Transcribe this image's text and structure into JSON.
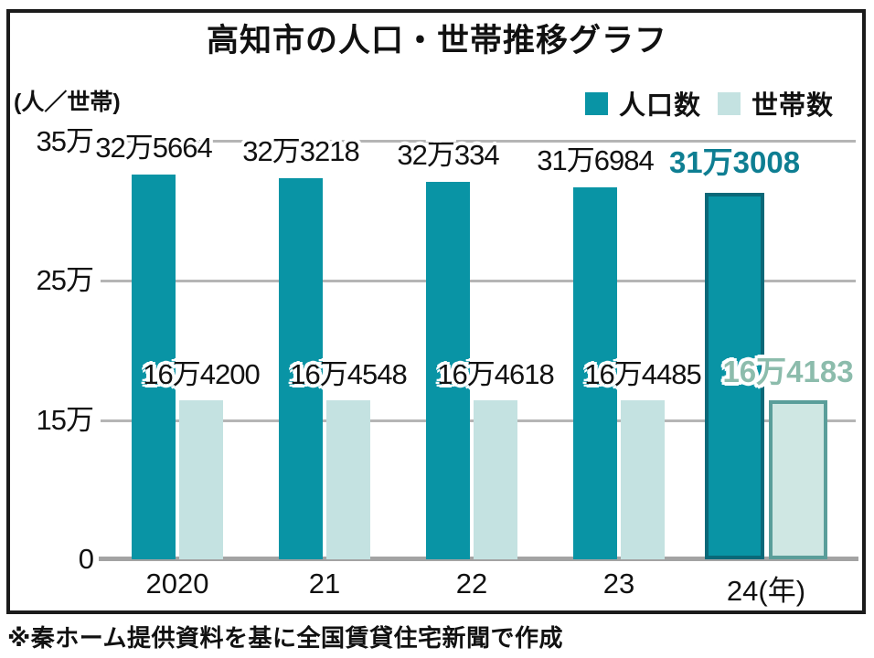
{
  "title": "高知市の人口・世帯推移グラフ",
  "unit_label": "(人／世帯)",
  "legend": {
    "population": "人口数",
    "households": "世帯数"
  },
  "footer": "※秦ホーム提供資料を基に全国賃貸住宅新聞で作成",
  "y_axis": {
    "ticks": [
      {
        "label": "35万",
        "value": 350000
      },
      {
        "label": "25万",
        "value": 250000
      },
      {
        "label": "15万",
        "value": 150000
      },
      {
        "label": "0",
        "value": 0
      }
    ]
  },
  "chart_data": {
    "type": "bar",
    "categories": [
      "2020",
      "21",
      "22",
      "23",
      "24(年)"
    ],
    "series": [
      {
        "name": "人口数",
        "values": [
          325664,
          323218,
          320334,
          316984,
          313008
        ],
        "labels": [
          "32万5664",
          "32万3218",
          "32万334",
          "31万6984",
          "31万3008"
        ]
      },
      {
        "name": "世帯数",
        "values": [
          164200,
          164548,
          164618,
          164485,
          164183
        ],
        "labels": [
          "16万4200",
          "16万4548",
          "16万4618",
          "16万4485",
          "16万4183"
        ]
      }
    ],
    "highlight_index": 4,
    "xlabel": "年",
    "ylabel": "人／世帯",
    "ylim": [
      0,
      350000
    ],
    "axis_note": "y axis compressed below 15万: ticks 0 / 15万 / 25万 / 35万 drawn equally spaced",
    "grid": true,
    "legend_position": "top-right"
  },
  "colors": {
    "population_bar": "#0994A5",
    "household_bar": "#C4E2E1",
    "population_highlight_border": "#0A6878",
    "household_highlight_fill": "#CFE7E3",
    "household_highlight_border": "#5A9E9A",
    "population_highlight_label": "#0E7E92",
    "household_highlight_label": "#8CBCAC",
    "gridline": "#B5B5B5",
    "text": "#111111"
  }
}
